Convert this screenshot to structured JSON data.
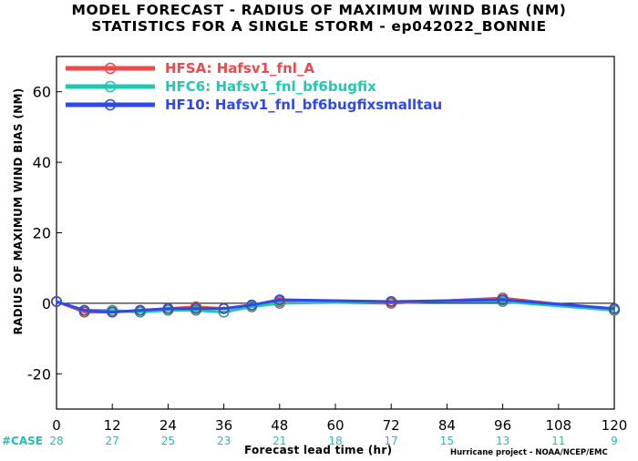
{
  "chart_data": {
    "type": "line",
    "title": "MODEL FORECAST - RADIUS OF MAXIMUM WIND BIAS (NM)",
    "subtitle": "STATISTICS FOR A SINGLE STORM - ep042022_BONNIE",
    "xlabel": "Forecast lead time (hr)",
    "ylabel": "RADIUS OF MAXIMUM WIND BIAS (NM)",
    "credit": "Hurricane project - NOAA/NCEP/EMC",
    "xlim": [
      0,
      120
    ],
    "ylim": [
      -30,
      70
    ],
    "xticks": [
      0,
      12,
      24,
      36,
      48,
      60,
      72,
      84,
      96,
      108,
      120
    ],
    "yticks": [
      -20,
      0,
      20,
      40,
      60
    ],
    "case_label": "#CASE",
    "cases": [
      28,
      27,
      25,
      23,
      21,
      18,
      17,
      15,
      13,
      11,
      9
    ],
    "legend_position": "top-left",
    "zero_line": true,
    "series": [
      {
        "name": "HFSA: Hafsv1_fnl_A",
        "color": "#f04848",
        "x": [
          0,
          6,
          12,
          18,
          24,
          30,
          36,
          42,
          48,
          72,
          96,
          120
        ],
        "y": [
          0.5,
          -2.5,
          -2.5,
          -2.0,
          -1.5,
          -1.0,
          -1.5,
          -0.5,
          0.5,
          0.0,
          1.5,
          -2.0
        ]
      },
      {
        "name": "HFC6: Hafsv1_fnl_bf6bugfix",
        "color": "#20c8b0",
        "x": [
          0,
          6,
          12,
          18,
          24,
          30,
          36,
          42,
          48,
          72,
          96,
          120
        ],
        "y": [
          0.5,
          -2.0,
          -2.0,
          -2.5,
          -2.0,
          -2.0,
          -2.5,
          -1.0,
          0.0,
          0.5,
          0.5,
          -2.0
        ]
      },
      {
        "name": "HF10: Hafsv1_fnl_bf6bugfixsmalltau",
        "color": "#3048e8",
        "x": [
          0,
          6,
          12,
          18,
          24,
          30,
          36,
          42,
          48,
          72,
          96,
          120
        ],
        "y": [
          0.5,
          -2.0,
          -2.5,
          -2.0,
          -1.5,
          -1.5,
          -1.5,
          -0.5,
          1.0,
          0.5,
          1.0,
          -1.5
        ]
      }
    ]
  }
}
